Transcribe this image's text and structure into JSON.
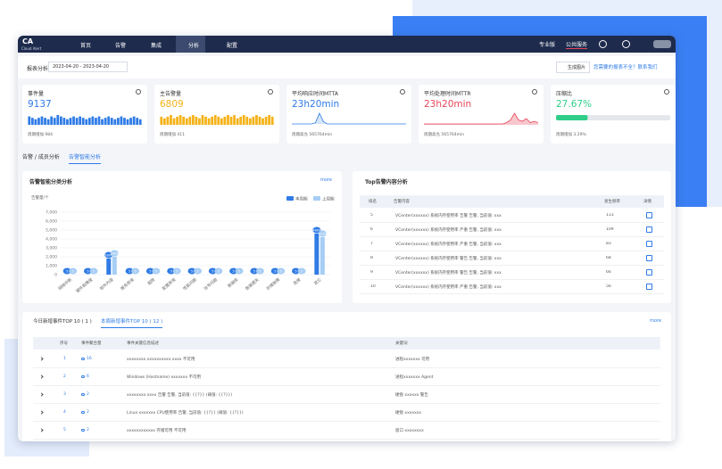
{
  "nav": {
    "logo": "CA",
    "logo_sub": "Cloud Alert",
    "items": [
      "首页",
      "告警",
      "集成",
      "分析",
      "配置"
    ],
    "active": 3,
    "edition": "专业版",
    "org": "公共服务"
  },
  "toolbar": {
    "label": "报表分析",
    "date_range": "2023-04-20 - 2023-04-20",
    "export": "生成图片",
    "help": "您需要的报表不全？联系我们"
  },
  "kpis": [
    {
      "title": "事件量",
      "value": 9137,
      "footer": "周期增加 984",
      "color": "#2f7be6",
      "kind": "bars",
      "spark": [
        6,
        5,
        4,
        5,
        6,
        5,
        4,
        6,
        5,
        7,
        6,
        5,
        4,
        5,
        6,
        5,
        6,
        5,
        4,
        5,
        6,
        5,
        6,
        4,
        5,
        6,
        5,
        4,
        5,
        6,
        5,
        4,
        5,
        6,
        5,
        4
      ]
    },
    {
      "title": "主告警量",
      "value": 6809,
      "footer": "周期增加 411",
      "color": "#f5b219",
      "kind": "bars",
      "spark": [
        5,
        4,
        5,
        6,
        4,
        5,
        6,
        5,
        4,
        5,
        6,
        5,
        4,
        6,
        5,
        4,
        5,
        6,
        5,
        4,
        5,
        6,
        5,
        6,
        4,
        5,
        6,
        5,
        4,
        5,
        6,
        5,
        4,
        5,
        6,
        5
      ]
    },
    {
      "title": "平均响应时间MTTA",
      "value": "23h20min",
      "footer": "周期高允 565764min",
      "color": "#2f7be6",
      "kind": "line",
      "spark": [
        0,
        0,
        0,
        0,
        0,
        0,
        1,
        9,
        2,
        0,
        0,
        0,
        0,
        0,
        0,
        0,
        0,
        0,
        0,
        0,
        0,
        0,
        0,
        0,
        0,
        0,
        0,
        0,
        0,
        0
      ]
    },
    {
      "title": "平均处理时间MTTR",
      "value": "23h20min",
      "footer": "周期高允 565764min",
      "color": "#e8465a",
      "kind": "area",
      "spark": [
        0,
        0,
        0,
        0,
        0,
        0,
        0,
        0,
        0,
        0,
        0,
        0,
        0,
        0,
        0,
        0,
        0,
        0,
        0,
        0,
        0,
        1,
        3,
        8,
        3,
        2,
        4,
        1,
        2,
        1
      ]
    },
    {
      "title": "压缩比",
      "value": "27.67%",
      "progress": 27.67,
      "footer": "周期增加 3.29%",
      "color": "#2fcf8a",
      "kind": "progress"
    }
  ],
  "tabs": {
    "items": [
      "告警 / 成员分析",
      "告警智能分析"
    ],
    "active": 1
  },
  "chart_data": {
    "type": "bar",
    "title": "告警智能分类分析",
    "more": "more",
    "y_label": "告警量/个",
    "categories": [
      "网络中断",
      "硬件故障报",
      "软件内容",
      "服务异常",
      "超限",
      "配置异常",
      "性能问题",
      "信号问题",
      "数据库",
      "数据遗失",
      "存储故障",
      "连接",
      "其它"
    ],
    "series": [
      {
        "name": "本周期",
        "color": "#2f7be6",
        "values": [
          5,
          5,
          1800,
          5,
          5,
          5,
          5,
          5,
          5,
          5,
          5,
          5,
          4600
        ]
      },
      {
        "name": "上周期",
        "color": "#a6cdf5",
        "values": [
          5,
          5,
          2000,
          5,
          5,
          5,
          5,
          5,
          5,
          5,
          5,
          5,
          4200
        ]
      }
    ],
    "ylim": [
      0,
      7000
    ],
    "yticks": [
      0,
      {
        "value": 1000,
        "label": "1,000"
      },
      {
        "value": 2000,
        "label": "2,000"
      },
      {
        "value": 3000,
        "label": "3,000"
      },
      {
        "value": 4000,
        "label": "4,000"
      },
      {
        "value": 5000,
        "label": "5,000"
      },
      {
        "value": 6000,
        "label": "6,000"
      },
      {
        "value": 7000,
        "label": "7,000"
      }
    ],
    "grid": true
  },
  "top_alerts": {
    "title": "Top告警内容分析",
    "columns": [
      "排名",
      "告警内容",
      "发生频率",
      "详情"
    ],
    "rows": [
      [
        "5",
        "VCenter(xxxxxx) 系统内存使用率 告警 告警, 当前值: xxx",
        "113"
      ],
      [
        "6",
        "VCenter(xxxxxx) 系统内存使用率 严重 告警, 当前值: xxx",
        "109"
      ],
      [
        "7",
        "VCenter(xxxxxx) 系统内存使用率 严重 告警, 当前值: xxx",
        "83"
      ],
      [
        "8",
        "VCenter(xxxxxx) 系统内存使用率 警告 告警, 当前值: xxx",
        "68"
      ],
      [
        "9",
        "VCenter(xxxxxx) 系统内存使用率 警告 告警, 当前值: xxx",
        "66"
      ],
      [
        "10",
        "VCenter(xxxxxx) 系统内存使用率 严重 告警, 当前值: xxx",
        "56"
      ]
    ]
  },
  "events": {
    "tabs": [
      "今日新增事件TOP 10 ( 1 )",
      "本周新增事件TOP 10 ( 12 )"
    ],
    "active": 1,
    "more": "more",
    "columns": [
      "序号",
      "事件聚合量",
      "事件关键信息描述",
      "关键词"
    ],
    "rows": [
      [
        "1",
        "16",
        "xxxxxxxx xxxxxxxxxx xxxx 不可用",
        "进程xxxxxxx 可用"
      ],
      [
        "2",
        "6",
        "Windows (Hostname) xxxxxxx 不可用",
        "进程xxxxxxx Agent"
      ],
      [
        "3",
        "2",
        "xxxxxxxx xxxx 告警 告警, 当前值: {{?}} (阈值: {{?}})",
        "硬盘 xxxxxx 警告"
      ],
      [
        "4",
        "2",
        "Linux xxxxxxx CPU使用率 告警, 当前值: {{?}} (阈值: {{?}})",
        "硬盘 xxxxxxx"
      ],
      [
        "5",
        "2",
        "xxxxxxxxxxxx 存储可用 不可用",
        "窗口 xxxxxxxx"
      ]
    ]
  }
}
